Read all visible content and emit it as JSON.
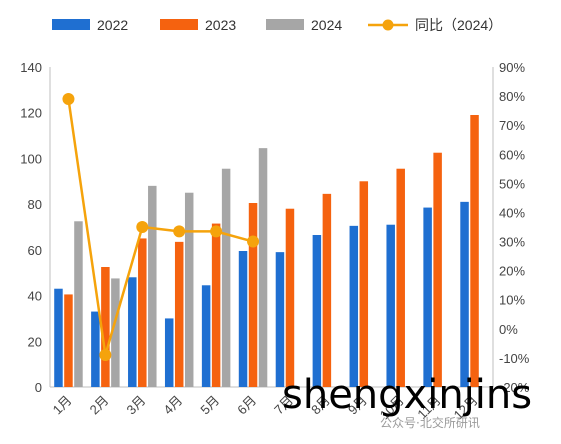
{
  "chart_data": {
    "type": "bar",
    "categories": [
      "1月",
      "2月",
      "3月",
      "4月",
      "5月",
      "6月",
      "7月",
      "8月",
      "9月",
      "10月",
      "11月",
      "12月"
    ],
    "series": [
      {
        "name": "2022",
        "type": "bar",
        "axis": "left",
        "color": "#1f6fd1",
        "values": [
          43,
          33,
          48,
          30,
          44.5,
          59.5,
          59,
          66.5,
          70.5,
          71,
          78.5,
          81
        ]
      },
      {
        "name": "2023",
        "type": "bar",
        "axis": "left",
        "color": "#f5620f",
        "values": [
          40.5,
          52.5,
          65,
          63.5,
          71.5,
          80.5,
          78,
          84.5,
          90,
          95.5,
          102.5,
          119
        ]
      },
      {
        "name": "2024",
        "type": "bar",
        "axis": "left",
        "color": "#a6a6a6",
        "values": [
          72.5,
          47.5,
          88,
          85,
          95.5,
          104.5,
          null,
          null,
          null,
          null,
          null,
          null
        ]
      },
      {
        "name": "同比（2024）",
        "type": "line",
        "axis": "right",
        "color": "#f5a30c",
        "values": [
          0.79,
          -0.09,
          0.35,
          0.335,
          0.335,
          0.3,
          null,
          null,
          null,
          null,
          null,
          null
        ]
      }
    ],
    "left_axis": {
      "min": 0,
      "max": 140,
      "step": 20,
      "ticks": [
        "0",
        "20",
        "40",
        "60",
        "80",
        "100",
        "120",
        "140"
      ]
    },
    "right_axis": {
      "min": -0.2,
      "max": 0.9,
      "step": 0.1,
      "ticks": [
        "-20%",
        "-10%",
        "0%",
        "10%",
        "20%",
        "30%",
        "40%",
        "50%",
        "60%",
        "70%",
        "80%",
        "90%"
      ]
    },
    "legend_position": "top",
    "grid": false
  },
  "watermark": {
    "text": "shengxinjins",
    "sub_text": "公众号·北交所研讯"
  }
}
